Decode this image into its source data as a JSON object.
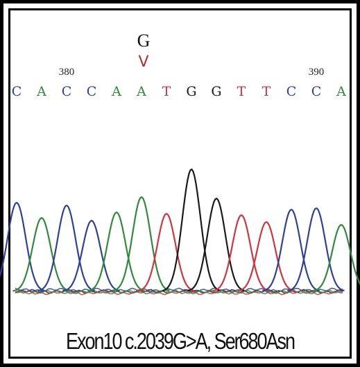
{
  "variant": {
    "alt_base": "G",
    "marker": "V"
  },
  "positions": [
    {
      "label": "380",
      "base_index": 2
    },
    {
      "label": "390",
      "base_index": 12
    }
  ],
  "bases": [
    "C",
    "A",
    "C",
    "C",
    "A",
    "A",
    "T",
    "G",
    "G",
    "T",
    "T",
    "C",
    "C",
    "A"
  ],
  "base_colors": {
    "A": "#2e8b3a",
    "C": "#2f3f9e",
    "G": "#1a1a1a",
    "T": "#d2343c"
  },
  "peaks": [
    {
      "base": "C",
      "height": 0.64
    },
    {
      "base": "A",
      "height": 0.53
    },
    {
      "base": "C",
      "height": 0.62
    },
    {
      "base": "C",
      "height": 0.51
    },
    {
      "base": "A",
      "height": 0.57
    },
    {
      "base": "A",
      "height": 0.68
    },
    {
      "base": "T",
      "height": 0.56
    },
    {
      "base": "G",
      "height": 0.88
    },
    {
      "base": "G",
      "height": 0.67
    },
    {
      "base": "T",
      "height": 0.55
    },
    {
      "base": "T",
      "height": 0.5
    },
    {
      "base": "C",
      "height": 0.59
    },
    {
      "base": "C",
      "height": 0.6
    },
    {
      "base": "A",
      "height": 0.48
    }
  ],
  "caption": "Exon10 c.2039G>A, Ser680Asn"
}
